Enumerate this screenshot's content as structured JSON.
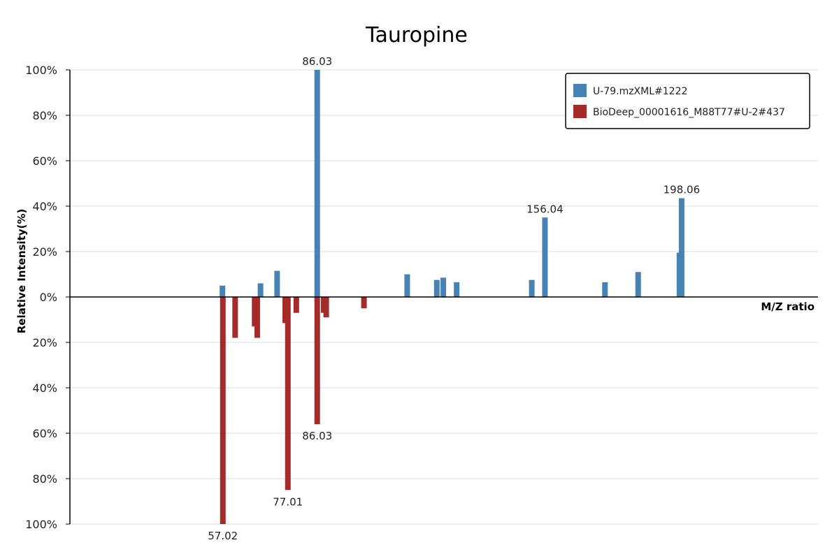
{
  "chart_data": {
    "type": "bar",
    "title": "Tauropine",
    "xlabel": "M/Z ratio",
    "ylabel": "Relative Intensity(%)",
    "xlim": [
      10,
      240
    ],
    "ylim": [
      -100,
      100
    ],
    "yticks": [
      {
        "value": 100,
        "label": "100%"
      },
      {
        "value": 80,
        "label": "80%"
      },
      {
        "value": 60,
        "label": "60%"
      },
      {
        "value": 40,
        "label": "40%"
      },
      {
        "value": 20,
        "label": "20%"
      },
      {
        "value": 0,
        "label": "0%"
      },
      {
        "value": -20,
        "label": "20%"
      },
      {
        "value": -40,
        "label": "40%"
      },
      {
        "value": -60,
        "label": "60%"
      },
      {
        "value": -80,
        "label": "80%"
      },
      {
        "value": -100,
        "label": "100%"
      }
    ],
    "grid": true,
    "legend_position": "top-right",
    "series": [
      {
        "name": "U-79.mzXML#1222",
        "color": "#4682b4",
        "direction": "up",
        "points": [
          {
            "mz": 56.9,
            "intensity": 5
          },
          {
            "mz": 68.6,
            "intensity": 6
          },
          {
            "mz": 73.7,
            "intensity": 11.5
          },
          {
            "mz": 86.03,
            "intensity": 100,
            "label": "86.03"
          },
          {
            "mz": 113.7,
            "intensity": 10
          },
          {
            "mz": 122.8,
            "intensity": 7.5
          },
          {
            "mz": 124.8,
            "intensity": 8.5
          },
          {
            "mz": 128.9,
            "intensity": 6.5
          },
          {
            "mz": 152.0,
            "intensity": 7.5
          },
          {
            "mz": 156.04,
            "intensity": 35,
            "label": "156.04"
          },
          {
            "mz": 174.5,
            "intensity": 6.5
          },
          {
            "mz": 184.7,
            "intensity": 11
          },
          {
            "mz": 197.4,
            "intensity": 19.5
          },
          {
            "mz": 198.06,
            "intensity": 43.5,
            "label": "198.06"
          }
        ]
      },
      {
        "name": "BioDeep_00001616_M88T77#U-2#437",
        "color": "#a52a2a",
        "direction": "down",
        "points": [
          {
            "mz": 57.02,
            "intensity": 100,
            "label": "57.02"
          },
          {
            "mz": 60.8,
            "intensity": 18
          },
          {
            "mz": 66.8,
            "intensity": 13
          },
          {
            "mz": 67.6,
            "intensity": 18
          },
          {
            "mz": 76.2,
            "intensity": 11.5
          },
          {
            "mz": 77.01,
            "intensity": 85,
            "label": "77.01"
          },
          {
            "mz": 79.6,
            "intensity": 7
          },
          {
            "mz": 86.03,
            "intensity": 56,
            "label": "86.03"
          },
          {
            "mz": 88.0,
            "intensity": 7
          },
          {
            "mz": 88.8,
            "intensity": 9
          },
          {
            "mz": 100.4,
            "intensity": 5
          }
        ]
      }
    ]
  }
}
